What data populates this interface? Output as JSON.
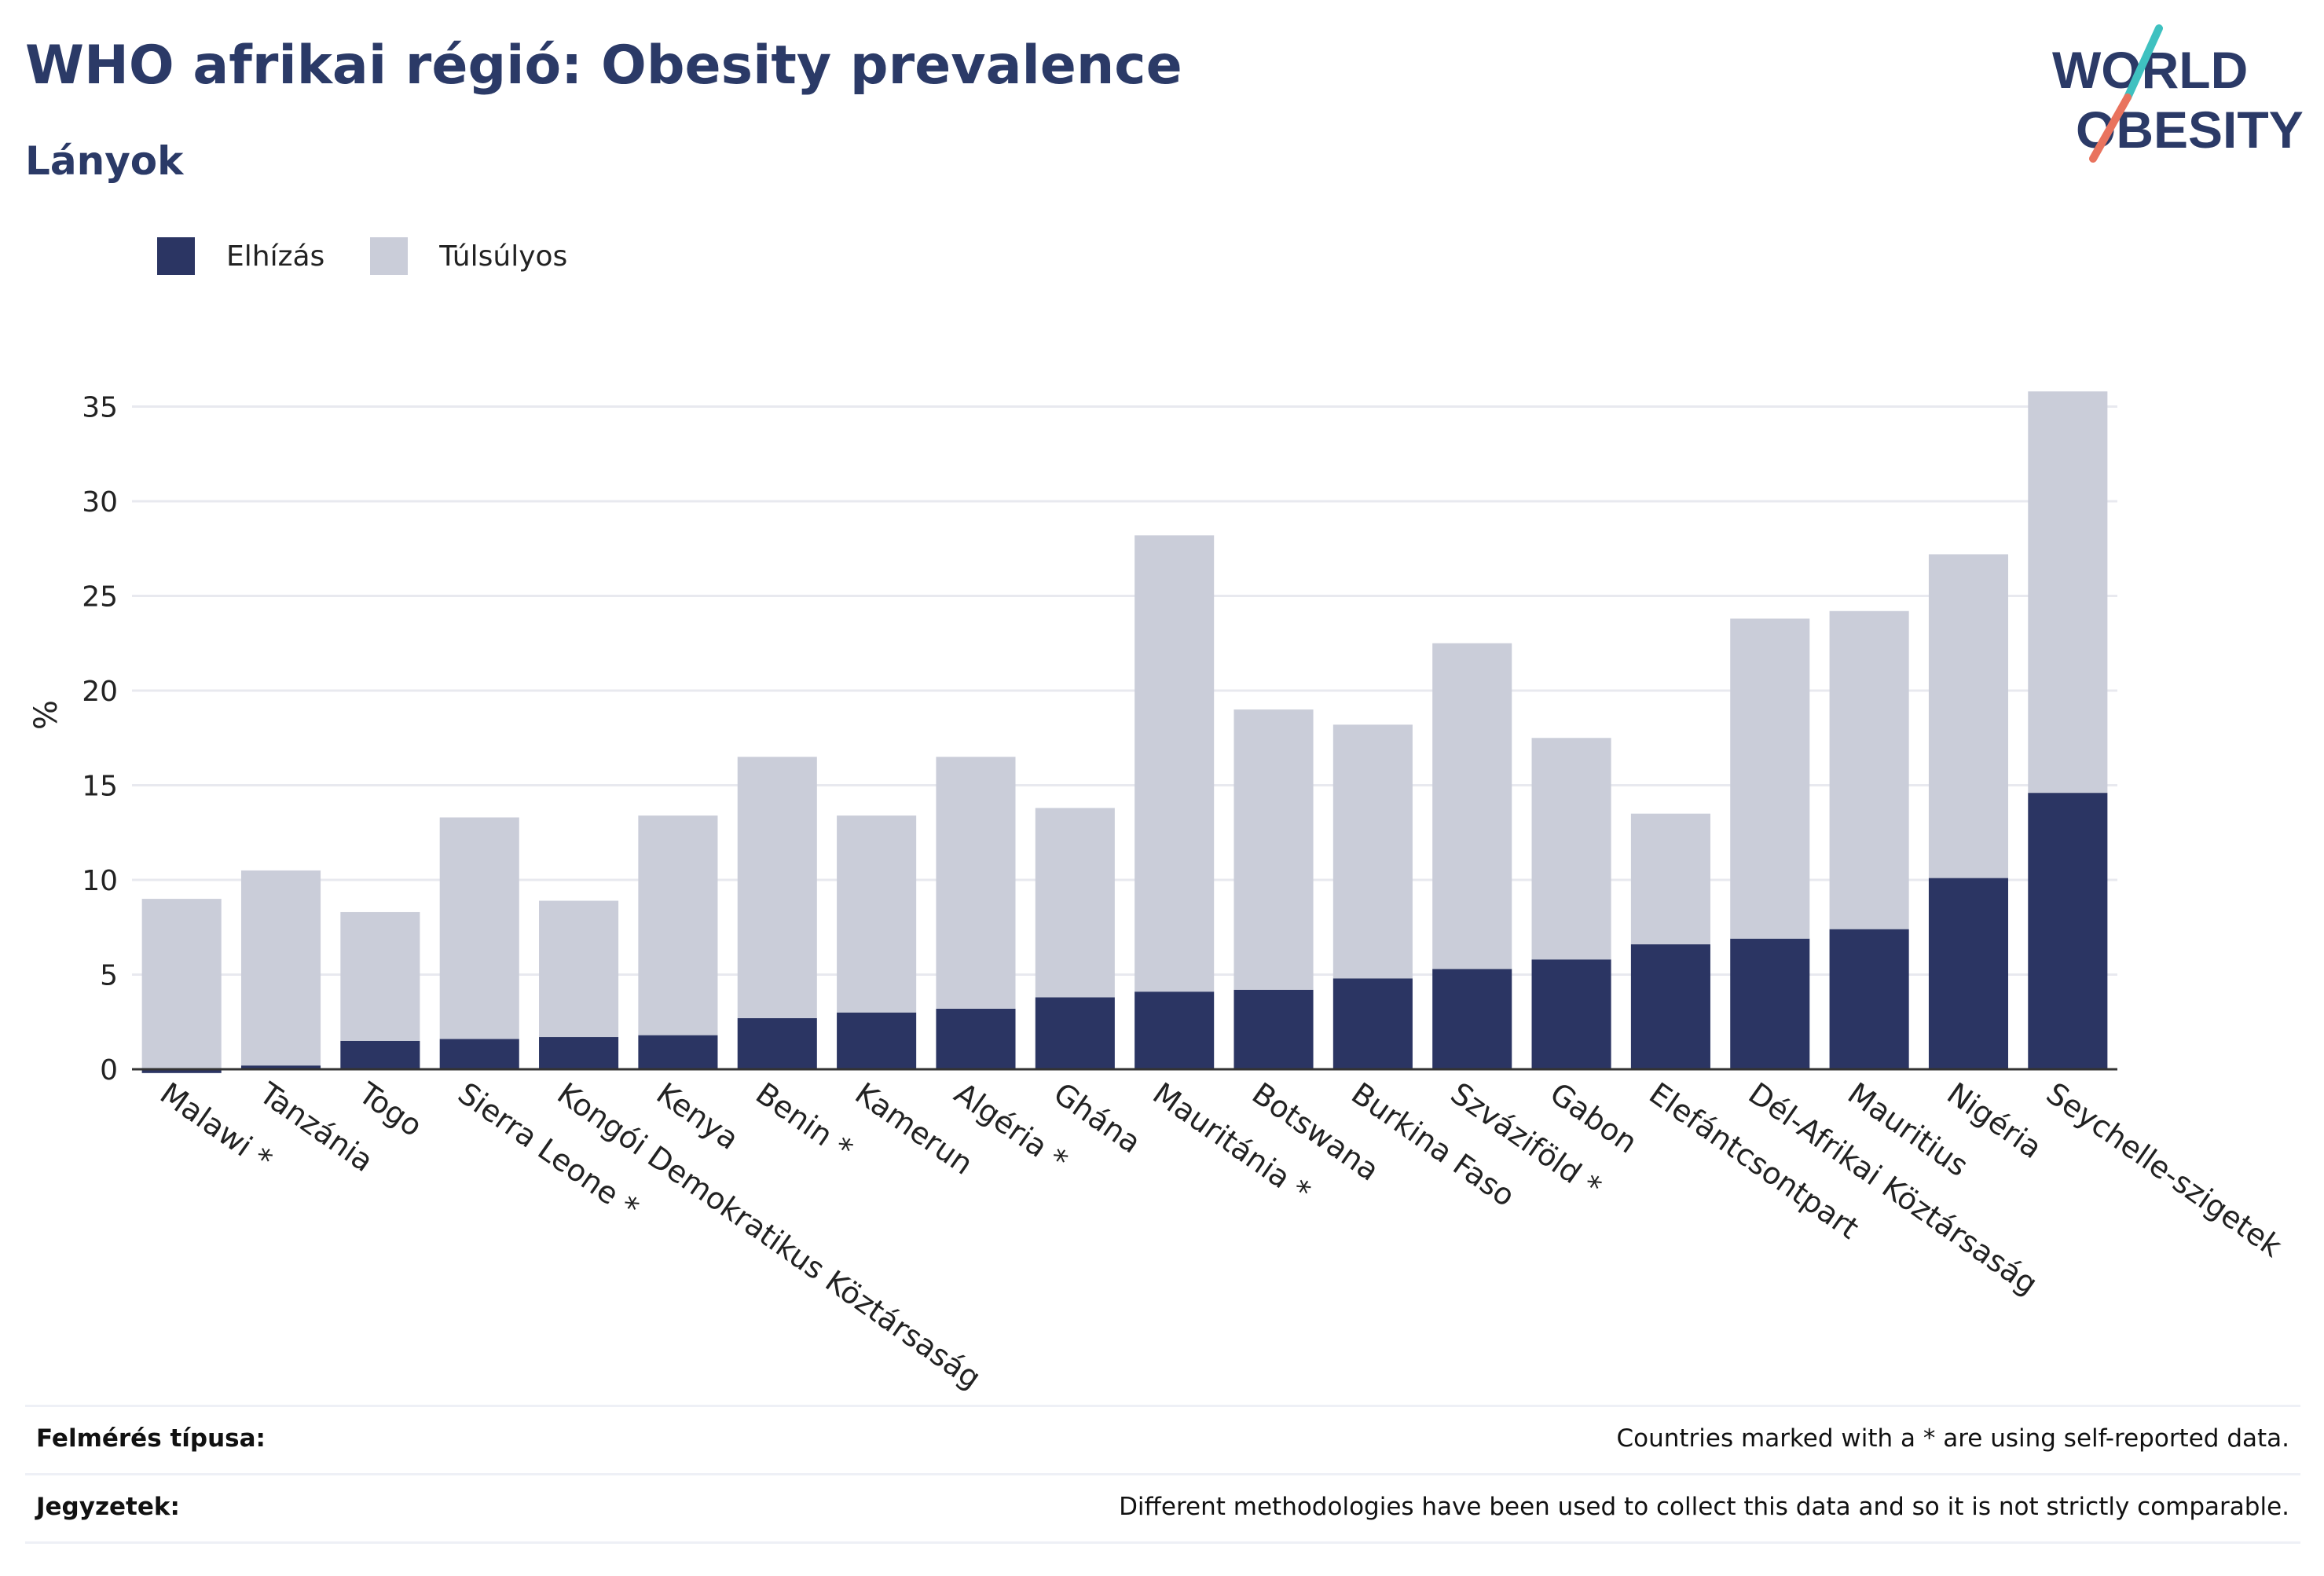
{
  "header": {
    "title": "WHO afrikai régió: Obesity prevalence",
    "subtitle": "Lányok"
  },
  "logo": {
    "line1": "WORLD",
    "line2": "OBESITY",
    "colors": {
      "text": "#2b3a67",
      "accent_teal": "#3fc1c0",
      "accent_coral": "#e9735e"
    }
  },
  "colors": {
    "obesity": "#2b3563",
    "overweight": "#cacdd9",
    "grid": "#e8e9ef",
    "axis": "#333333"
  },
  "chart_data": {
    "type": "bar",
    "stacked": true,
    "ylabel": "%",
    "ylim": [
      0,
      37
    ],
    "yticks": [
      0,
      5,
      10,
      15,
      20,
      25,
      30,
      35
    ],
    "grid": true,
    "legend_position": "top-left",
    "categories": [
      "Malawi *",
      "Tanzánia",
      "Togo",
      "Sierra Leone *",
      "Kongói Demokratikus Köztársaság",
      "Kenya",
      "Benin *",
      "Kamerun",
      "Algéria *",
      "Ghána",
      "Mauritánia *",
      "Botswana",
      "Burkina Faso",
      "Szváziföld *",
      "Gabon",
      "Elefántcsontpart",
      "Dél-Afrikai Köztársaság",
      "Mauritius",
      "Nigéria",
      "Seychelle-szigetek"
    ],
    "series": [
      {
        "name": "Elhízás",
        "values": [
          -0.2,
          0.2,
          1.5,
          1.6,
          1.7,
          1.8,
          2.7,
          3.0,
          3.2,
          3.8,
          4.1,
          4.2,
          4.8,
          5.3,
          5.8,
          6.6,
          6.9,
          7.4,
          10.1,
          14.6
        ]
      },
      {
        "name": "Túlsúlyos",
        "values": [
          9.0,
          10.3,
          6.8,
          11.7,
          7.2,
          11.6,
          13.8,
          10.4,
          13.3,
          10.0,
          24.1,
          14.8,
          13.4,
          17.2,
          11.7,
          6.9,
          16.9,
          16.8,
          17.1,
          21.2
        ]
      }
    ]
  },
  "footer": {
    "survey_label": "Felmérés típusa:",
    "survey_value": "Countries marked with a * are using self-reported data.",
    "notes_label": "Jegyzetek:",
    "notes_value": "Different methodologies have been used to collect this data and so it is not strictly comparable."
  }
}
